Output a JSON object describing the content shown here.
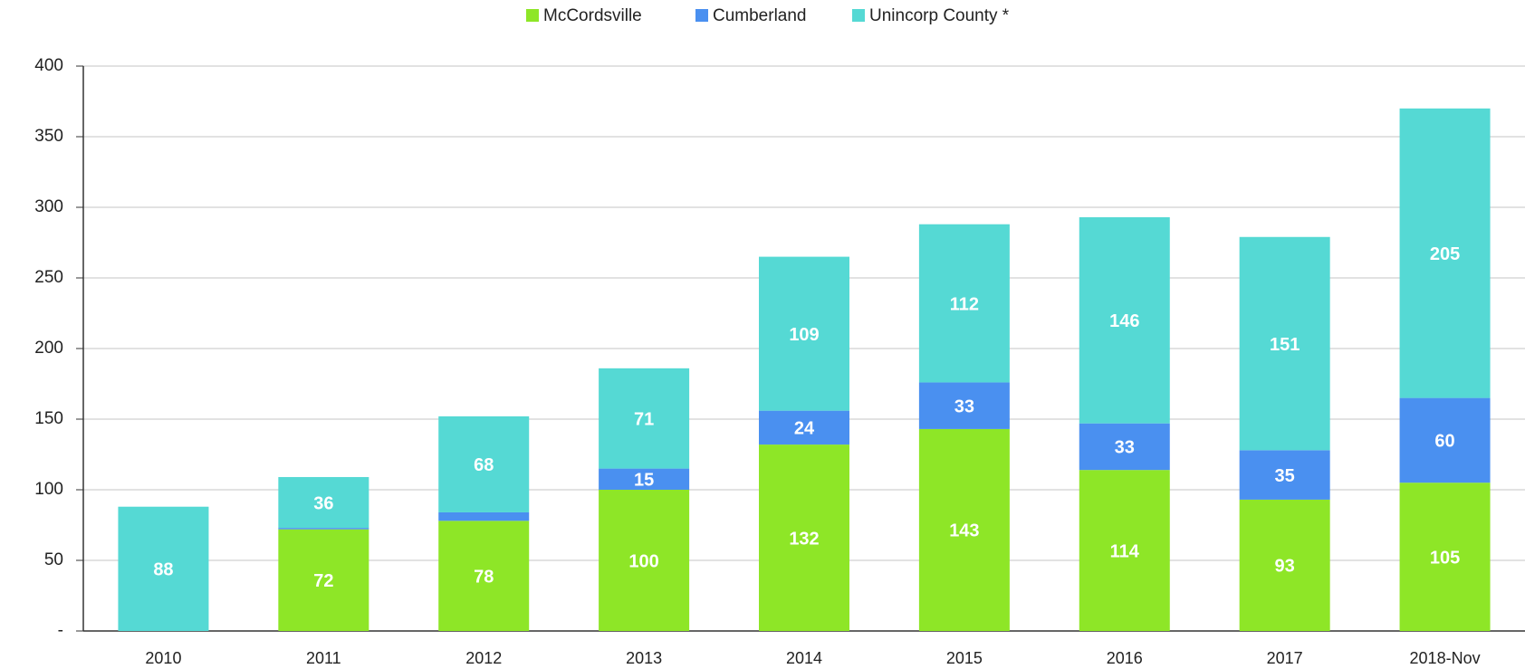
{
  "chart_data": {
    "type": "stacked_bar",
    "categories": [
      "2010",
      "2011",
      "2012",
      "2013",
      "2014",
      "2015",
      "2016",
      "2017",
      "2018-Nov"
    ],
    "series": [
      {
        "name": "McCordsville",
        "color": "#8ee627",
        "values": [
          0,
          72,
          78,
          100,
          132,
          143,
          114,
          93,
          105
        ]
      },
      {
        "name": "Cumberland",
        "color": "#4a90f0",
        "values": [
          0,
          1,
          6,
          15,
          24,
          33,
          33,
          35,
          60
        ]
      },
      {
        "name": "Unincorp County *",
        "color": "#55d9d4",
        "values": [
          88,
          36,
          68,
          71,
          109,
          112,
          146,
          151,
          205
        ]
      }
    ],
    "ylim": [
      0,
      400
    ],
    "yticks": [
      {
        "value": 0,
        "label": "-"
      },
      50,
      100,
      150,
      200,
      250,
      300,
      350,
      400
    ],
    "grid": true,
    "legend": "top"
  }
}
